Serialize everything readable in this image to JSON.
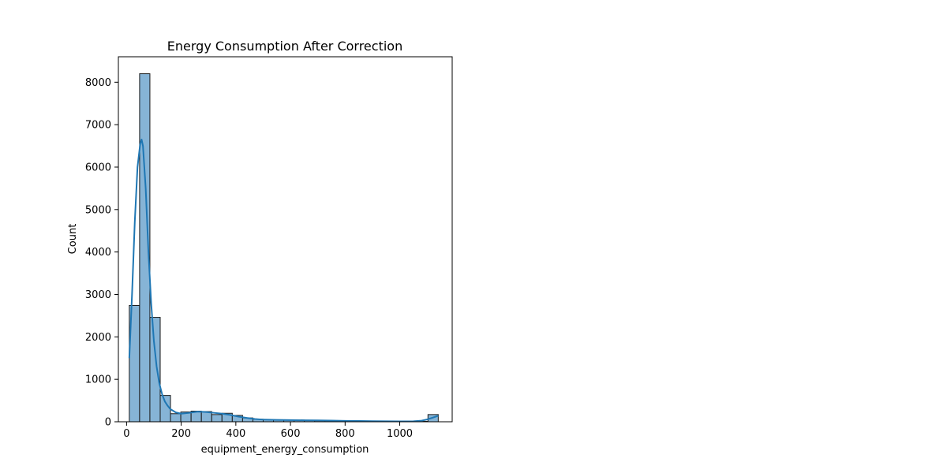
{
  "chart_data": {
    "type": "bar",
    "title": "Energy Consumption After Correction",
    "xlabel": "equipment_energy_consumption",
    "ylabel": "Count",
    "xlim": [
      -30,
      1192
    ],
    "ylim": [
      0,
      8600
    ],
    "xticks": [
      0,
      200,
      400,
      600,
      800,
      1000
    ],
    "yticks": [
      0,
      1000,
      2000,
      3000,
      4000,
      5000,
      6000,
      7000,
      8000
    ],
    "grid": false,
    "bin_width": 37.7,
    "bins": [
      {
        "start": 10,
        "end": 47.7,
        "count": 2740
      },
      {
        "start": 47.7,
        "end": 85.4,
        "count": 8200
      },
      {
        "start": 85.4,
        "end": 123.1,
        "count": 2460
      },
      {
        "start": 123.1,
        "end": 160.8,
        "count": 620
      },
      {
        "start": 160.8,
        "end": 198.5,
        "count": 190
      },
      {
        "start": 198.5,
        "end": 236.2,
        "count": 230
      },
      {
        "start": 236.2,
        "end": 273.9,
        "count": 250
      },
      {
        "start": 273.9,
        "end": 311.6,
        "count": 240
      },
      {
        "start": 311.6,
        "end": 349.3,
        "count": 170
      },
      {
        "start": 349.3,
        "end": 387.0,
        "count": 200
      },
      {
        "start": 387.0,
        "end": 424.7,
        "count": 150
      },
      {
        "start": 424.7,
        "end": 462.4,
        "count": 90
      },
      {
        "start": 462.4,
        "end": 500.1,
        "count": 60
      },
      {
        "start": 500.1,
        "end": 537.8,
        "count": 50
      },
      {
        "start": 537.8,
        "end": 575.5,
        "count": 40
      },
      {
        "start": 575.5,
        "end": 613.2,
        "count": 45
      },
      {
        "start": 613.2,
        "end": 650.9,
        "count": 40
      },
      {
        "start": 650.9,
        "end": 688.6,
        "count": 30
      },
      {
        "start": 688.6,
        "end": 726.3,
        "count": 25
      },
      {
        "start": 726.3,
        "end": 764.0,
        "count": 25
      },
      {
        "start": 764.0,
        "end": 801.7,
        "count": 20
      },
      {
        "start": 801.7,
        "end": 839.4,
        "count": 15
      },
      {
        "start": 839.4,
        "end": 877.1,
        "count": 12
      },
      {
        "start": 877.1,
        "end": 914.8,
        "count": 10
      },
      {
        "start": 914.8,
        "end": 952.5,
        "count": 8
      },
      {
        "start": 952.5,
        "end": 990.2,
        "count": 6
      },
      {
        "start": 990.2,
        "end": 1027.9,
        "count": 5
      },
      {
        "start": 1027.9,
        "end": 1065.6,
        "count": 5
      },
      {
        "start": 1065.6,
        "end": 1103.3,
        "count": 10
      },
      {
        "start": 1103.3,
        "end": 1141.0,
        "count": 170
      }
    ],
    "kde": {
      "x": [
        10,
        20,
        30,
        40,
        50,
        55,
        60,
        70,
        80,
        90,
        100,
        110,
        120,
        130,
        140,
        150,
        160,
        180,
        200,
        230,
        260,
        290,
        320,
        350,
        380,
        410,
        440,
        470,
        500,
        550,
        600,
        650,
        700,
        750,
        800,
        850,
        900,
        950,
        1000,
        1050,
        1080,
        1100,
        1120,
        1141
      ],
      "y": [
        1500,
        3000,
        4700,
        6000,
        6550,
        6650,
        6500,
        5500,
        4000,
        2800,
        1900,
        1300,
        900,
        650,
        480,
        380,
        300,
        220,
        190,
        210,
        240,
        230,
        210,
        190,
        160,
        120,
        90,
        65,
        50,
        45,
        40,
        35,
        32,
        28,
        22,
        18,
        15,
        12,
        10,
        12,
        25,
        55,
        95,
        140
      ]
    },
    "colors": {
      "bar_fill": "#86b4d6",
      "bar_edge": "#1a1a1a",
      "kde_line": "#1f77b4",
      "axis": "#000000"
    }
  }
}
